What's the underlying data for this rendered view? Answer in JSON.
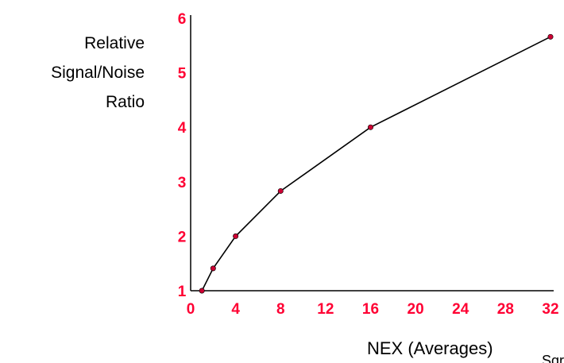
{
  "chart_data": {
    "type": "line",
    "title": "",
    "ylabel_lines": [
      "Relative",
      "Signal/Noise",
      "Ratio"
    ],
    "xlabel": "NEX (Averages)",
    "annotation": "Sqrt",
    "x_ticks": [
      0,
      4,
      8,
      12,
      16,
      20,
      24,
      28,
      32
    ],
    "y_ticks": [
      1,
      2,
      3,
      4,
      5,
      6
    ],
    "xlim": [
      0,
      32
    ],
    "ylim": [
      1,
      6
    ],
    "grid": false,
    "legend": "none",
    "series": [
      {
        "x": [
          1,
          2,
          4,
          8,
          16,
          32
        ],
        "y": [
          1.0,
          1.41,
          2.0,
          2.83,
          4.0,
          5.66
        ]
      }
    ],
    "colors": {
      "line": "#000000",
      "marker": "#cc0033",
      "tick_label": "#ff0033",
      "axis": "#000000"
    }
  }
}
